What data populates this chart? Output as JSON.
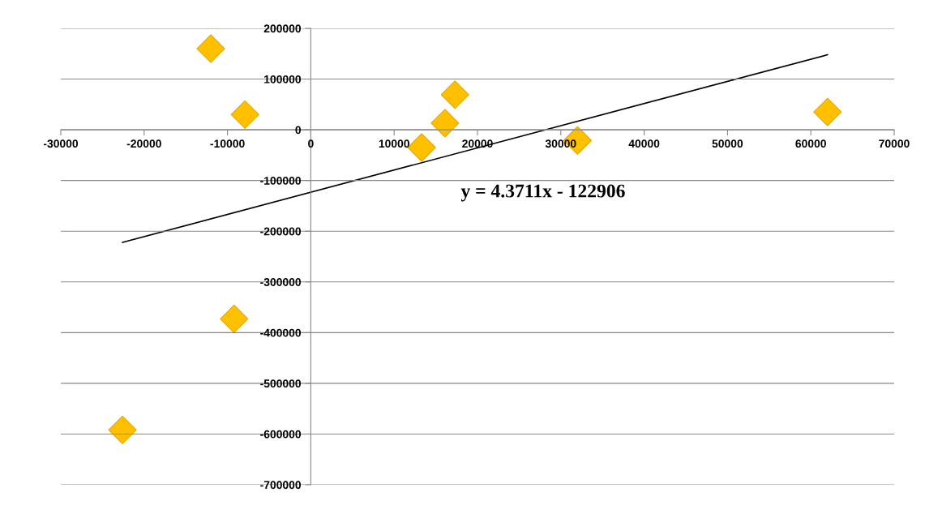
{
  "chart_data": {
    "type": "scatter",
    "xlim": [
      -30000,
      70000
    ],
    "ylim": [
      -700000,
      200000
    ],
    "xticks": [
      -30000,
      -20000,
      -10000,
      0,
      10000,
      20000,
      30000,
      40000,
      50000,
      60000,
      70000
    ],
    "yticks": [
      -700000,
      -600000,
      -500000,
      -400000,
      -300000,
      -200000,
      -100000,
      0,
      100000,
      200000
    ],
    "grid": "y",
    "marker": "diamond",
    "series": [
      {
        "color": "#ffc000",
        "x": [
          -12000,
          -7900,
          -9200,
          -22600,
          13300,
          16100,
          17300,
          32000,
          62000
        ],
        "values": [
          160000,
          30000,
          -373000,
          -592000,
          -35000,
          13000,
          69000,
          -21000,
          35000
        ]
      },
      {
        "type": "line",
        "color": "#000000",
        "marker": "none",
        "line_style": "solid",
        "x": [
          -22600,
          62000
        ],
        "values": [
          -222000,
          148000
        ]
      }
    ],
    "annotations": [
      "y = 4.3711x - 122906"
    ]
  }
}
